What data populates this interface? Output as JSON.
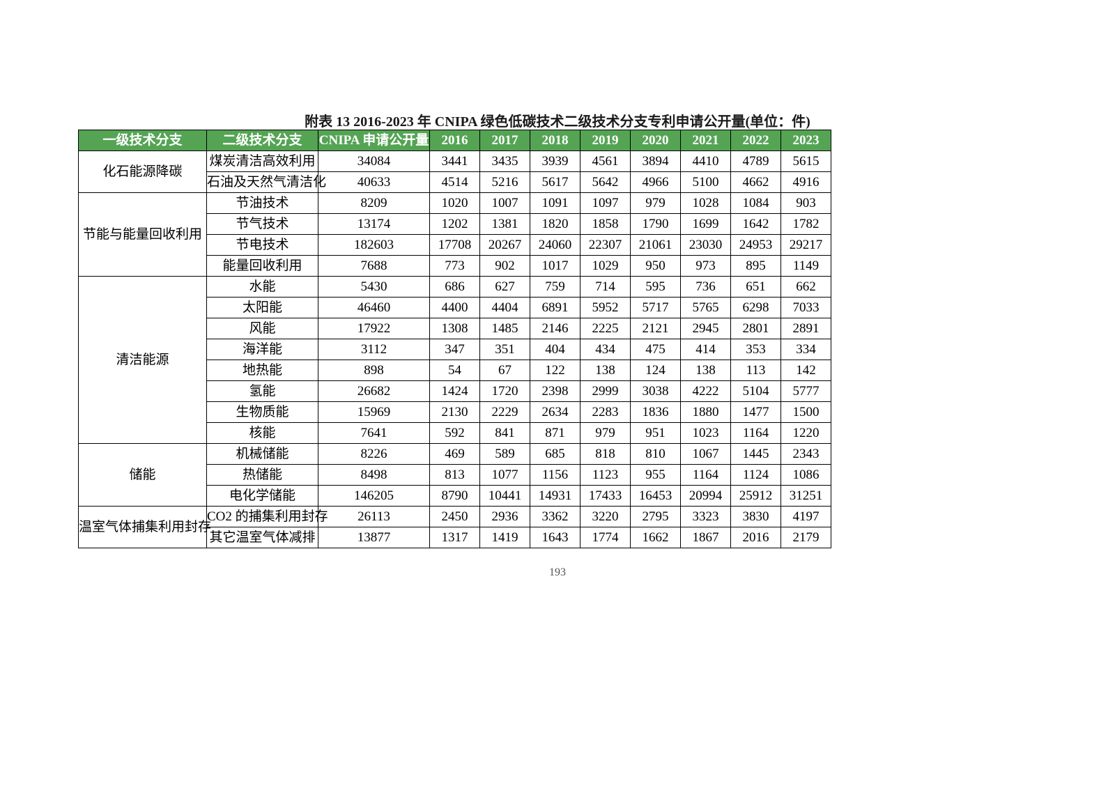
{
  "caption": "附表 13 2016-2023 年 CNIPA 绿色低碳技术二级技术分支专利申请公开量(单位：件)",
  "pagenum": "193",
  "header_bg": "#54a454",
  "header_fg": "#ffffff",
  "border_color": "#000000",
  "columns": [
    "一级技术分支",
    "二级技术分支",
    "CNIPA 申请公开量",
    "2016",
    "2017",
    "2018",
    "2019",
    "2020",
    "2021",
    "2022",
    "2023"
  ],
  "groups": [
    {
      "l1": "化石能源降碳",
      "rows": [
        {
          "l2": "煤炭清洁高效利用",
          "total": "34084",
          "y": [
            "3441",
            "3435",
            "3939",
            "4561",
            "3894",
            "4410",
            "4789",
            "5615"
          ]
        },
        {
          "l2": "石油及天然气清洁化",
          "total": "40633",
          "y": [
            "4514",
            "5216",
            "5617",
            "5642",
            "4966",
            "5100",
            "4662",
            "4916"
          ]
        }
      ]
    },
    {
      "l1": "节能与能量回收利用",
      "rows": [
        {
          "l2": "节油技术",
          "total": "8209",
          "y": [
            "1020",
            "1007",
            "1091",
            "1097",
            "979",
            "1028",
            "1084",
            "903"
          ]
        },
        {
          "l2": "节气技术",
          "total": "13174",
          "y": [
            "1202",
            "1381",
            "1820",
            "1858",
            "1790",
            "1699",
            "1642",
            "1782"
          ]
        },
        {
          "l2": "节电技术",
          "total": "182603",
          "y": [
            "17708",
            "20267",
            "24060",
            "22307",
            "21061",
            "23030",
            "24953",
            "29217"
          ]
        },
        {
          "l2": "能量回收利用",
          "total": "7688",
          "y": [
            "773",
            "902",
            "1017",
            "1029",
            "950",
            "973",
            "895",
            "1149"
          ]
        }
      ]
    },
    {
      "l1": "清洁能源",
      "rows": [
        {
          "l2": "水能",
          "total": "5430",
          "y": [
            "686",
            "627",
            "759",
            "714",
            "595",
            "736",
            "651",
            "662"
          ]
        },
        {
          "l2": "太阳能",
          "total": "46460",
          "y": [
            "4400",
            "4404",
            "6891",
            "5952",
            "5717",
            "5765",
            "6298",
            "7033"
          ]
        },
        {
          "l2": "风能",
          "total": "17922",
          "y": [
            "1308",
            "1485",
            "2146",
            "2225",
            "2121",
            "2945",
            "2801",
            "2891"
          ]
        },
        {
          "l2": "海洋能",
          "total": "3112",
          "y": [
            "347",
            "351",
            "404",
            "434",
            "475",
            "414",
            "353",
            "334"
          ]
        },
        {
          "l2": "地热能",
          "total": "898",
          "y": [
            "54",
            "67",
            "122",
            "138",
            "124",
            "138",
            "113",
            "142"
          ]
        },
        {
          "l2": "氢能",
          "total": "26682",
          "y": [
            "1424",
            "1720",
            "2398",
            "2999",
            "3038",
            "4222",
            "5104",
            "5777"
          ]
        },
        {
          "l2": "生物质能",
          "total": "15969",
          "y": [
            "2130",
            "2229",
            "2634",
            "2283",
            "1836",
            "1880",
            "1477",
            "1500"
          ]
        },
        {
          "l2": "核能",
          "total": "7641",
          "y": [
            "592",
            "841",
            "871",
            "979",
            "951",
            "1023",
            "1164",
            "1220"
          ]
        }
      ]
    },
    {
      "l1": "储能",
      "rows": [
        {
          "l2": "机械储能",
          "total": "8226",
          "y": [
            "469",
            "589",
            "685",
            "818",
            "810",
            "1067",
            "1445",
            "2343"
          ]
        },
        {
          "l2": "热储能",
          "total": "8498",
          "y": [
            "813",
            "1077",
            "1156",
            "1123",
            "955",
            "1164",
            "1124",
            "1086"
          ]
        },
        {
          "l2": "电化学储能",
          "total": "146205",
          "y": [
            "8790",
            "10441",
            "14931",
            "17433",
            "16453",
            "20994",
            "25912",
            "31251"
          ]
        }
      ]
    },
    {
      "l1": "温室气体捕集利用封存",
      "rows": [
        {
          "l2": "CO2 的捕集利用封存",
          "total": "26113",
          "y": [
            "2450",
            "2936",
            "3362",
            "3220",
            "2795",
            "3323",
            "3830",
            "4197"
          ]
        },
        {
          "l2": "其它温室气体减排",
          "total": "13877",
          "y": [
            "1317",
            "1419",
            "1643",
            "1774",
            "1662",
            "1867",
            "2016",
            "2179"
          ]
        }
      ]
    }
  ]
}
